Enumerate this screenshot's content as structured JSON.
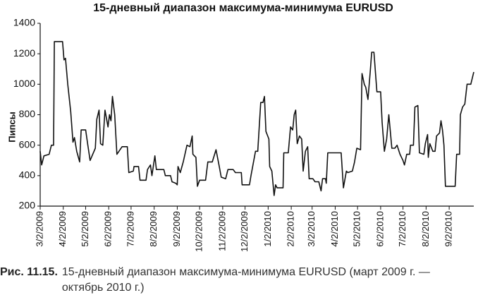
{
  "chart_data": {
    "type": "line",
    "title": "15-дневный диапазон максимума-минимума EURUSD",
    "ylabel": "Пипсы",
    "color": "#111111",
    "ylim": [
      200,
      1400
    ],
    "yticks": [
      200,
      400,
      600,
      800,
      1000,
      1200,
      1400
    ],
    "xlim": [
      "2009-03-02",
      "2010-10-05"
    ],
    "xticks": [
      {
        "value": "2009-03-02",
        "label": "3/2/2009"
      },
      {
        "value": "2009-04-02",
        "label": "4/2/2009"
      },
      {
        "value": "2009-05-02",
        "label": "5/2/2009"
      },
      {
        "value": "2009-06-02",
        "label": "6/2/2009"
      },
      {
        "value": "2009-07-02",
        "label": "7/2/2009"
      },
      {
        "value": "2009-08-02",
        "label": "8/2/2009"
      },
      {
        "value": "2009-09-02",
        "label": "9/2/2009"
      },
      {
        "value": "2009-10-02",
        "label": "10/2/2009"
      },
      {
        "value": "2009-11-02",
        "label": "11/2/2009"
      },
      {
        "value": "2009-12-02",
        "label": "12/2/2009"
      },
      {
        "value": "2010-01-02",
        "label": "1/2/2010"
      },
      {
        "value": "2010-02-02",
        "label": "2/2/2010"
      },
      {
        "value": "2010-03-02",
        "label": "3/2/2010"
      },
      {
        "value": "2010-04-02",
        "label": "4/2/2010"
      },
      {
        "value": "2010-05-02",
        "label": "5/2/2010"
      },
      {
        "value": "2010-06-02",
        "label": "6/2/2010"
      },
      {
        "value": "2010-07-02",
        "label": "7/2/2010"
      },
      {
        "value": "2010-08-02",
        "label": "8/2/2010"
      },
      {
        "value": "2010-09-02",
        "label": "9/2/2010"
      }
    ],
    "x": [
      "2009-03-02",
      "2009-03-04",
      "2009-03-07",
      "2009-03-14",
      "2009-03-17",
      "2009-03-20",
      "2009-03-21",
      "2009-04-01",
      "2009-04-03",
      "2009-04-05",
      "2009-04-08",
      "2009-04-12",
      "2009-04-15",
      "2009-04-17",
      "2009-04-20",
      "2009-04-24",
      "2009-04-26",
      "2009-05-02",
      "2009-05-05",
      "2009-05-08",
      "2009-05-15",
      "2009-05-17",
      "2009-05-20",
      "2009-05-22",
      "2009-05-25",
      "2009-05-28",
      "2009-06-01",
      "2009-06-03",
      "2009-06-05",
      "2009-06-07",
      "2009-06-10",
      "2009-06-13",
      "2009-06-20",
      "2009-06-27",
      "2009-06-29",
      "2009-07-05",
      "2009-07-06",
      "2009-07-12",
      "2009-07-14",
      "2009-07-22",
      "2009-07-24",
      "2009-07-28",
      "2009-07-30",
      "2009-08-03",
      "2009-08-05",
      "2009-08-15",
      "2009-08-17",
      "2009-08-24",
      "2009-08-26",
      "2009-08-31",
      "2009-09-02",
      "2009-09-03",
      "2009-09-06",
      "2009-09-10",
      "2009-09-15",
      "2009-09-19",
      "2009-09-22",
      "2009-09-23",
      "2009-09-27",
      "2009-09-29",
      "2009-10-02",
      "2009-10-10",
      "2009-10-13",
      "2009-10-19",
      "2009-10-24",
      "2009-10-28",
      "2009-10-31",
      "2009-11-06",
      "2009-11-09",
      "2009-11-16",
      "2009-11-19",
      "2009-11-27",
      "2009-11-28",
      "2009-12-08",
      "2009-12-10",
      "2009-12-16",
      "2009-12-19",
      "2009-12-23",
      "2009-12-26",
      "2009-12-28",
      "2009-12-30",
      "2010-01-03",
      "2010-01-04",
      "2010-01-07",
      "2010-01-10",
      "2010-01-12",
      "2010-01-14",
      "2010-01-22",
      "2010-01-23",
      "2010-01-29",
      "2010-02-01",
      "2010-02-04",
      "2010-02-06",
      "2010-02-08",
      "2010-02-10",
      "2010-02-13",
      "2010-02-16",
      "2010-02-18",
      "2010-02-21",
      "2010-02-24",
      "2010-02-26",
      "2010-03-03",
      "2010-03-06",
      "2010-03-11",
      "2010-03-14",
      "2010-03-16",
      "2010-03-20",
      "2010-03-21",
      "2010-03-23",
      "2010-04-10",
      "2010-04-13",
      "2010-04-17",
      "2010-04-19",
      "2010-04-25",
      "2010-04-28",
      "2010-05-01",
      "2010-05-06",
      "2010-05-08",
      "2010-05-11",
      "2010-05-13",
      "2010-05-16",
      "2010-05-19",
      "2010-05-21",
      "2010-05-24",
      "2010-05-28",
      "2010-06-02",
      "2010-06-04",
      "2010-06-07",
      "2010-06-10",
      "2010-06-13",
      "2010-06-17",
      "2010-06-21",
      "2010-06-24",
      "2010-06-28",
      "2010-07-02",
      "2010-07-04",
      "2010-07-07",
      "2010-07-11",
      "2010-07-12",
      "2010-07-16",
      "2010-07-18",
      "2010-07-22",
      "2010-07-24",
      "2010-07-30",
      "2010-08-01",
      "2010-08-04",
      "2010-08-05",
      "2010-08-07",
      "2010-08-11",
      "2010-08-14",
      "2010-08-16",
      "2010-08-20",
      "2010-08-22",
      "2010-08-24",
      "2010-08-26",
      "2010-08-28",
      "2010-09-10",
      "2010-09-12",
      "2010-09-16",
      "2010-09-17",
      "2010-09-20",
      "2010-09-23",
      "2010-09-26",
      "2010-10-01",
      "2010-10-05"
    ],
    "values": [
      560,
      470,
      530,
      540,
      600,
      600,
      1280,
      1280,
      1160,
      1170,
      1000,
      820,
      620,
      650,
      560,
      490,
      700,
      700,
      600,
      500,
      580,
      770,
      830,
      610,
      600,
      830,
      720,
      800,
      760,
      920,
      800,
      540,
      590,
      590,
      420,
      430,
      460,
      460,
      370,
      370,
      440,
      470,
      400,
      530,
      440,
      440,
      400,
      400,
      360,
      350,
      340,
      460,
      420,
      490,
      600,
      590,
      660,
      540,
      520,
      330,
      370,
      370,
      490,
      490,
      570,
      470,
      390,
      380,
      440,
      440,
      420,
      420,
      340,
      340,
      400,
      560,
      560,
      880,
      880,
      920,
      690,
      640,
      460,
      430,
      270,
      340,
      320,
      320,
      550,
      550,
      720,
      700,
      800,
      830,
      610,
      660,
      640,
      430,
      560,
      590,
      380,
      380,
      360,
      360,
      300,
      380,
      380,
      350,
      550,
      550,
      320,
      430,
      420,
      430,
      490,
      580,
      570,
      1070,
      1000,
      980,
      900,
      1080,
      1210,
      1210,
      950,
      950,
      750,
      560,
      640,
      800,
      580,
      580,
      600,
      540,
      500,
      470,
      540,
      540,
      600,
      600,
      850,
      860,
      550,
      540,
      610,
      670,
      520,
      610,
      560,
      560,
      660,
      680,
      760,
      700,
      600,
      330,
      330,
      540,
      540,
      800,
      850,
      870,
      1000,
      1000,
      1080
    ]
  },
  "caption": {
    "label": "Рис. 11.15.",
    "text": "15-дневный диапазон максимума-минимума EURUSD (март 2009 г. — октябрь 2010 г.)"
  }
}
